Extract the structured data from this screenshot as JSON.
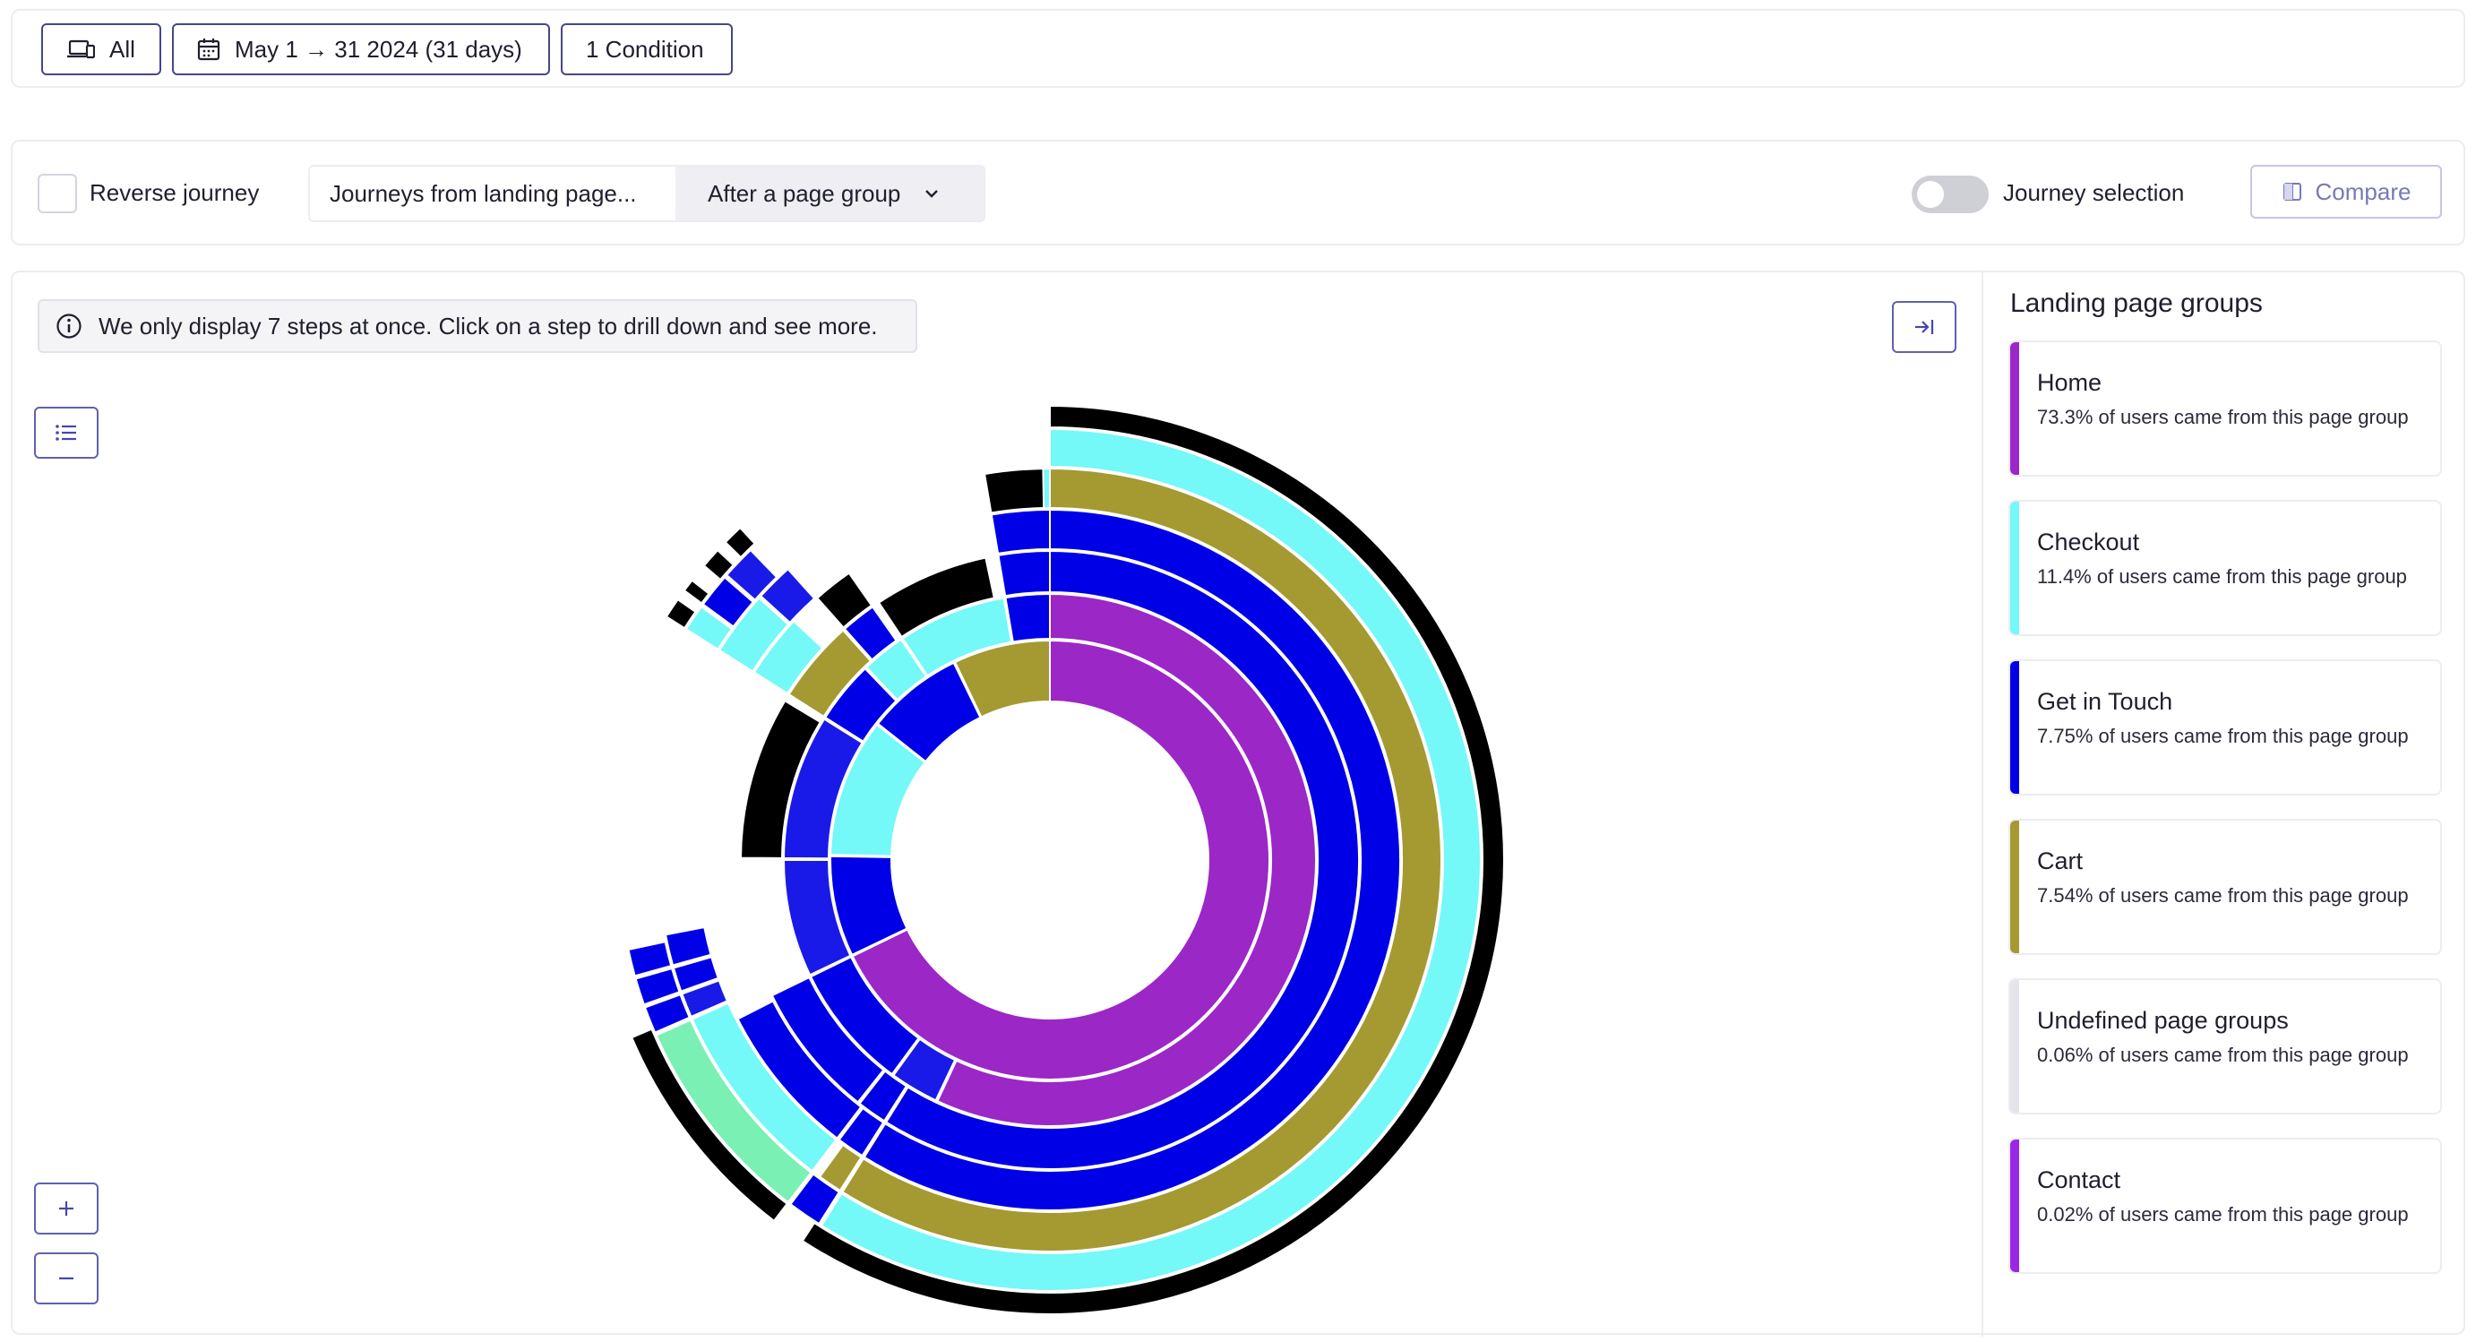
{
  "filters": {
    "device": "All",
    "date_range": "May 1 → 31 2024 (31 days)",
    "conditions": "1 Condition"
  },
  "controls": {
    "reverse_journey_label": "Reverse journey",
    "journey_type_left": "Journeys from landing page...",
    "journey_type_right": "After a page group",
    "journey_selection_label": "Journey selection",
    "journey_selection_on": false,
    "compare_label": "Compare"
  },
  "main": {
    "info_text": "We only display 7 steps at once. Click on a step to drill down and see more."
  },
  "side_panel": {
    "title": "Landing page groups",
    "groups": [
      {
        "name": "Home",
        "desc": "73.3% of users came from this page group",
        "color": "#9b27c6"
      },
      {
        "name": "Checkout",
        "desc": "11.4% of users came from this page group",
        "color": "#74f8f8"
      },
      {
        "name": "Get in Touch",
        "desc": "7.75% of users came from this page group",
        "color": "#0000e6"
      },
      {
        "name": "Cart",
        "desc": "7.54% of users came from this page group",
        "color": "#a49a31"
      },
      {
        "name": "Undefined page groups",
        "desc": "0.06% of users came from this page group",
        "color": "#e4e4ea"
      },
      {
        "name": "Contact",
        "desc": "0.02% of users came from this page group",
        "color": "#9b27e6"
      }
    ]
  },
  "colors": {
    "home": "#9b27c6",
    "checkout": "#74f8f8",
    "get_in_touch": "#0000e6",
    "get_in_touch_alt": "#1a1ae8",
    "cart": "#a49a31",
    "exit": "#000000",
    "mint": "#7af0b4"
  },
  "chart_data": {
    "type": "sunburst",
    "title": "",
    "rings": [
      [
        {
          "group": "home",
          "from_deg": 0,
          "to_deg": 244
        },
        {
          "group": "get_in_touch",
          "from_deg": 244.4,
          "to_deg": 271
        },
        {
          "group": "checkout",
          "from_deg": 271.4,
          "to_deg": 308
        },
        {
          "group": "get_in_touch",
          "from_deg": 308.4,
          "to_deg": 334
        },
        {
          "group": "cart",
          "from_deg": 334.4,
          "to_deg": 360
        }
      ],
      [
        {
          "group": "home",
          "from_deg": 0,
          "to_deg": 205
        },
        {
          "group": "get_in_touch_alt",
          "from_deg": 205.4,
          "to_deg": 216
        },
        {
          "group": "get_in_touch",
          "from_deg": 216.4,
          "to_deg": 244
        },
        {
          "group": "get_in_touch_alt",
          "from_deg": 244.4,
          "to_deg": 270
        },
        {
          "group": "get_in_touch_alt",
          "from_deg": 270.4,
          "to_deg": 302
        },
        {
          "group": "get_in_touch",
          "from_deg": 302.4,
          "to_deg": 316
        },
        {
          "group": "checkout",
          "from_deg": 316.4,
          "to_deg": 326
        },
        {
          "group": "checkout",
          "from_deg": 326.4,
          "to_deg": 350
        },
        {
          "group": "get_in_touch",
          "from_deg": 350.4,
          "to_deg": 360
        }
      ],
      [
        {
          "group": "get_in_touch",
          "from_deg": 0,
          "to_deg": 212
        },
        {
          "group": "get_in_touch",
          "from_deg": 212.4,
          "to_deg": 218
        },
        {
          "group": "get_in_touch",
          "from_deg": 218.4,
          "to_deg": 244
        },
        {
          "group": "exit",
          "from_deg": 270.4,
          "to_deg": 301
        },
        {
          "group": "cart",
          "from_deg": 302.4,
          "to_deg": 318
        },
        {
          "group": "get_in_touch",
          "from_deg": 318.4,
          "to_deg": 325
        },
        {
          "group": "exit",
          "from_deg": 326.4,
          "to_deg": 348
        },
        {
          "group": "get_in_touch",
          "from_deg": 350.4,
          "to_deg": 360
        }
      ],
      [
        {
          "group": "get_in_touch",
          "from_deg": 0,
          "to_deg": 212
        },
        {
          "group": "get_in_touch",
          "from_deg": 212.4,
          "to_deg": 217
        },
        {
          "group": "get_in_touch",
          "from_deg": 217.4,
          "to_deg": 243
        },
        {
          "group": "checkout",
          "from_deg": 302.4,
          "to_deg": 313
        },
        {
          "group": "exit",
          "from_deg": 318.4,
          "to_deg": 325
        },
        {
          "group": "get_in_touch",
          "from_deg": 350.4,
          "to_deg": 360
        }
      ],
      [
        {
          "group": "cart",
          "from_deg": 0,
          "to_deg": 212
        },
        {
          "group": "cart",
          "from_deg": 212.4,
          "to_deg": 216
        },
        {
          "group": "checkout",
          "from_deg": 217.4,
          "to_deg": 246
        },
        {
          "group": "get_in_touch_alt",
          "from_deg": 246.4,
          "to_deg": 250
        },
        {
          "group": "get_in_touch",
          "from_deg": 250.4,
          "to_deg": 254
        },
        {
          "group": "get_in_touch",
          "from_deg": 254.4,
          "to_deg": 259
        },
        {
          "group": "checkout",
          "from_deg": 302.4,
          "to_deg": 312
        },
        {
          "group": "get_in_touch_alt",
          "from_deg": 312.4,
          "to_deg": 318
        },
        {
          "group": "checkout",
          "from_deg": 350.4,
          "to_deg": 360
        },
        {
          "group": "exit",
          "from_deg": 350.4,
          "to_deg": 359
        }
      ],
      [
        {
          "group": "checkout",
          "from_deg": 0,
          "to_deg": 212
        },
        {
          "group": "get_in_touch",
          "from_deg": 212.4,
          "to_deg": 217
        },
        {
          "group": "mint",
          "from_deg": 217.4,
          "to_deg": 246
        },
        {
          "group": "get_in_touch",
          "from_deg": 246.4,
          "to_deg": 250
        },
        {
          "group": "get_in_touch",
          "from_deg": 250.4,
          "to_deg": 254
        },
        {
          "group": "get_in_touch",
          "from_deg": 254.4,
          "to_deg": 258
        },
        {
          "group": "checkout",
          "from_deg": 302.4,
          "to_deg": 306
        },
        {
          "group": "get_in_touch",
          "from_deg": 306.4,
          "to_deg": 311
        },
        {
          "group": "get_in_touch_alt",
          "from_deg": 311.4,
          "to_deg": 316
        }
      ],
      [
        {
          "group": "exit",
          "from_deg": 0,
          "to_deg": 213
        },
        {
          "group": "exit",
          "from_deg": 217.4,
          "to_deg": 247
        },
        {
          "group": "exit",
          "from_deg": 302.4,
          "to_deg": 305
        },
        {
          "group": "exit",
          "from_deg": 306.4,
          "to_deg": 308
        },
        {
          "group": "exit",
          "from_deg": 310.4,
          "to_deg": 313
        },
        {
          "group": "exit",
          "from_deg": 314.4,
          "to_deg": 317
        }
      ]
    ]
  }
}
